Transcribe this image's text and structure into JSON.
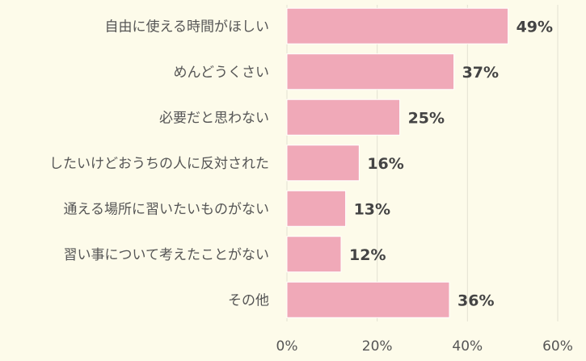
{
  "chart_data": {
    "type": "bar",
    "orientation": "horizontal",
    "categories": [
      "自由に使える時間がほしい",
      "めんどうくさい",
      "必要だと思わない",
      "したいけどおうちの人に反対された",
      "通える場所に習いたいものがない",
      "習い事について考えたことがない",
      "その他"
    ],
    "values": [
      49,
      37,
      25,
      16,
      13,
      12,
      36
    ],
    "value_labels": [
      "49%",
      "37%",
      "25%",
      "16%",
      "13%",
      "12%",
      "36%"
    ],
    "xlim": [
      0,
      60
    ],
    "ticks": [
      0,
      20,
      40,
      60
    ],
    "tick_labels": [
      "0%",
      "20%",
      "40%",
      "60%"
    ],
    "grid": true,
    "legend": "none",
    "colors": {
      "bar": "#f0a9b8",
      "bar_stroke": "#ffffff",
      "grid": "#e4e2d2",
      "background": "#fdfbea"
    }
  }
}
